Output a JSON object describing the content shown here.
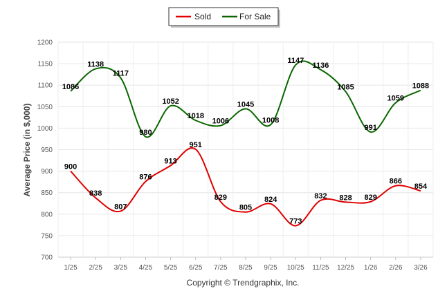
{
  "chart_data": {
    "type": "line",
    "title": "",
    "xlabel": "",
    "ylabel": "Average Price (in $,000)",
    "categories": [
      "1/25",
      "2/25",
      "3/25",
      "4/25",
      "5/25",
      "6/25",
      "7/25",
      "8/25",
      "9/25",
      "10/25",
      "11/25",
      "12/25",
      "1/26",
      "2/26",
      "3/26"
    ],
    "ylim": [
      700,
      1200
    ],
    "yticks": [
      700,
      750,
      800,
      850,
      900,
      950,
      1000,
      1050,
      1100,
      1150,
      1200
    ],
    "grid": true,
    "legend_position": "top-center",
    "series": [
      {
        "name": "Sold",
        "color": "#e00000",
        "values": [
          900,
          838,
          807,
          876,
          913,
          951,
          829,
          805,
          824,
          773,
          832,
          828,
          829,
          866,
          854
        ]
      },
      {
        "name": "For Sale",
        "color": "#0a6600",
        "values": [
          1086,
          1138,
          1117,
          980,
          1052,
          1018,
          1006,
          1045,
          1008,
          1147,
          1136,
          1085,
          991,
          1059,
          1088
        ]
      }
    ],
    "footer": "Copyright © Trendgraphix, Inc."
  }
}
